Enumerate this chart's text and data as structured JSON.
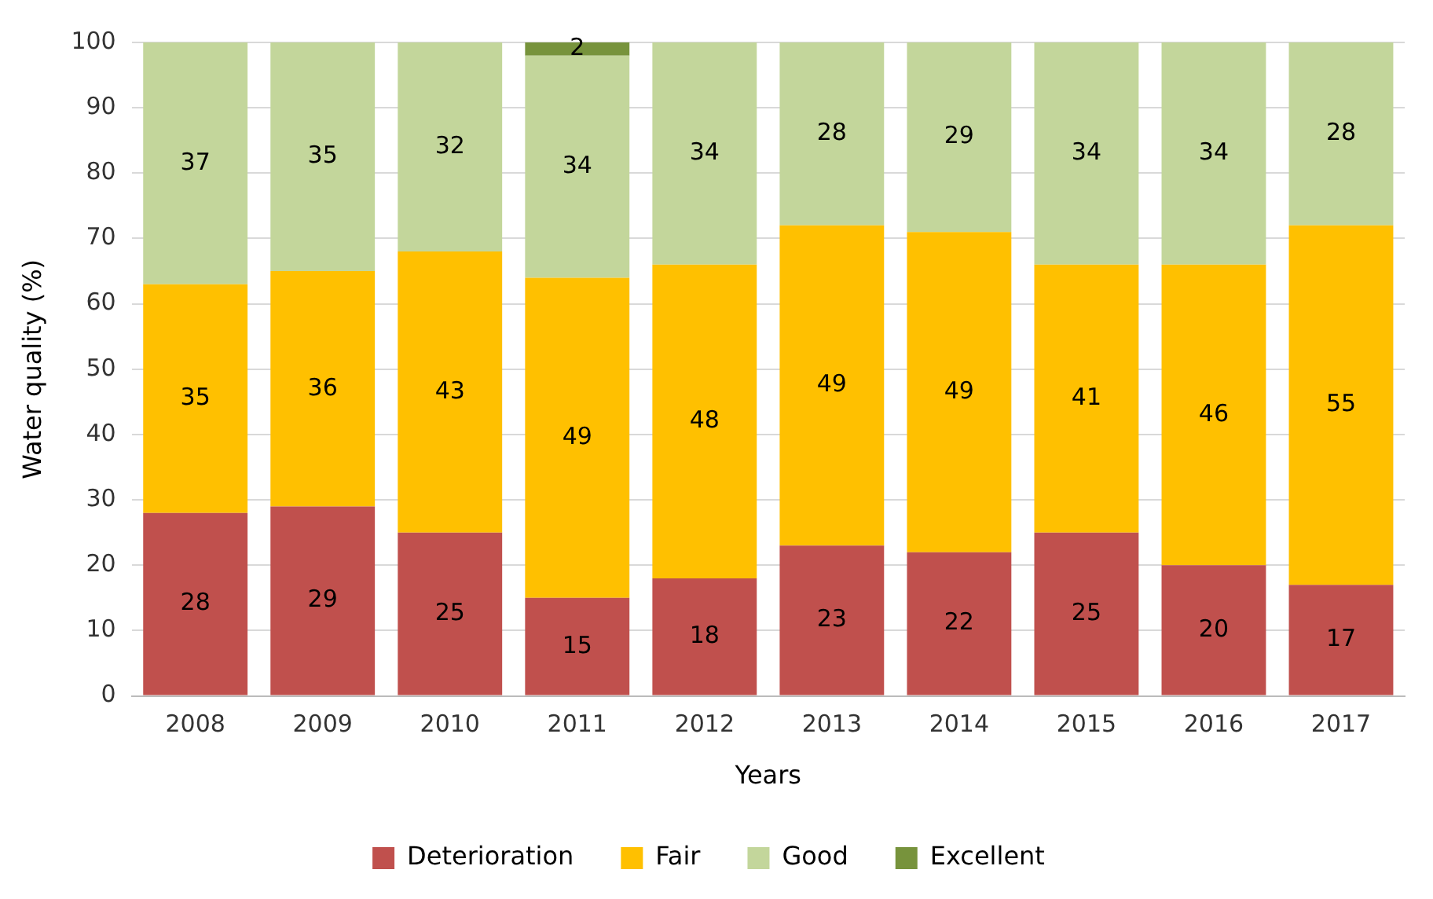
{
  "chart_data": {
    "type": "bar",
    "xlabel": "Years",
    "ylabel": "Water quality (%)",
    "categories": [
      "2008",
      "2009",
      "2010",
      "2011",
      "2012",
      "2013",
      "2014",
      "2015",
      "2016",
      "2017"
    ],
    "series": [
      {
        "name": "Deterioration",
        "color": "#c0504d",
        "values": [
          28,
          29,
          25,
          15,
          18,
          23,
          22,
          25,
          20,
          17
        ]
      },
      {
        "name": "Fair",
        "color": "#ffc000",
        "values": [
          35,
          36,
          43,
          49,
          48,
          49,
          49,
          41,
          46,
          55
        ]
      },
      {
        "name": "Good",
        "color": "#c3d69b",
        "values": [
          37,
          35,
          32,
          34,
          34,
          28,
          29,
          34,
          34,
          28
        ]
      },
      {
        "name": "Excellent",
        "color": "#77933c",
        "values": [
          null,
          null,
          null,
          2,
          null,
          null,
          null,
          null,
          null,
          null
        ]
      }
    ],
    "stacked": true,
    "ylim": [
      0,
      100
    ],
    "yticks": [
      0,
      10,
      20,
      30,
      40,
      50,
      60,
      70,
      80,
      90,
      100
    ],
    "grid": "y",
    "legend": "bottom",
    "data_labels": true
  }
}
